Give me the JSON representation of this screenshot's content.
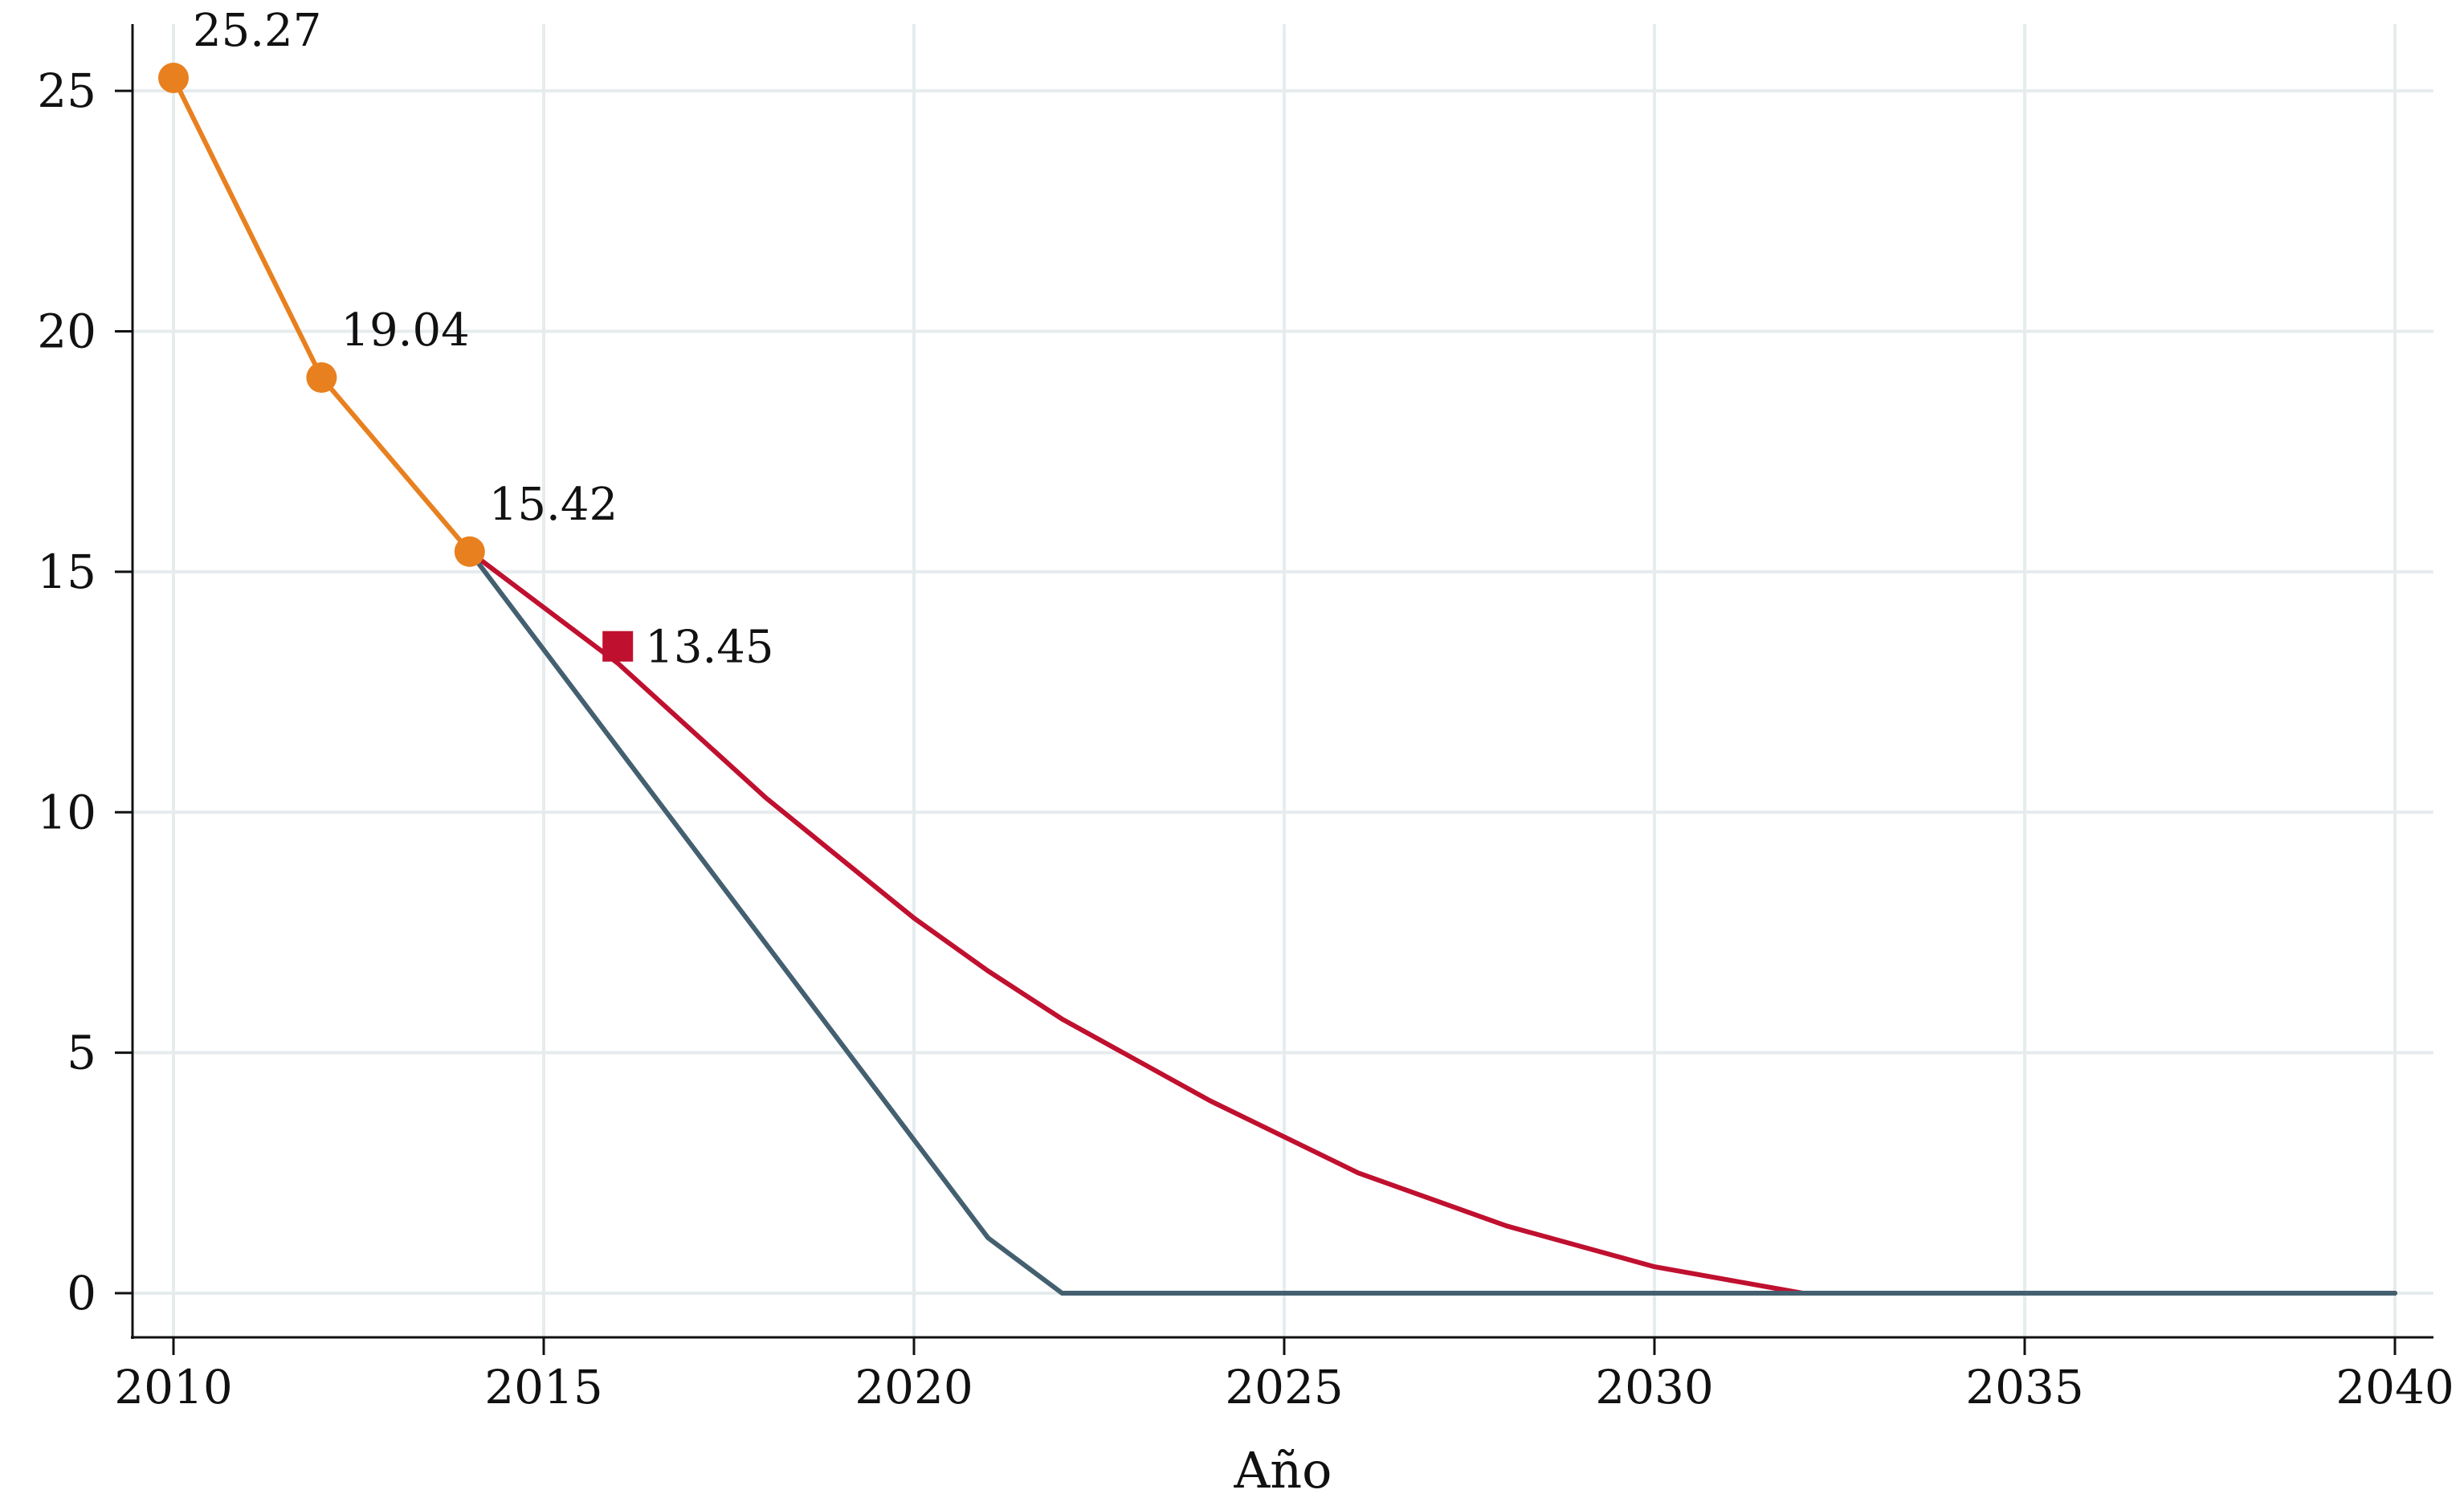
{
  "chart_data": {
    "type": "line",
    "xlabel": "Año",
    "ylabel": "",
    "xlim": [
      2010,
      2040
    ],
    "ylim": [
      0,
      25.27
    ],
    "xticks": [
      2010,
      2015,
      2020,
      2025,
      2030,
      2035,
      2040
    ],
    "yticks": [
      0,
      5,
      10,
      15,
      20,
      25
    ],
    "grid": true,
    "legend": "none",
    "series": [
      {
        "color": "#e8801f",
        "marker": "circle",
        "x": [
          2010,
          2012,
          2014
        ],
        "y": [
          25.27,
          19.04,
          15.42
        ]
      },
      {
        "color": "#c0102f",
        "marker": "none",
        "x": [
          2014,
          2016,
          2018,
          2020,
          2021,
          2022,
          2024,
          2026,
          2028,
          2030,
          2032,
          2034,
          2036,
          2038,
          2040
        ],
        "y": [
          15.42,
          13.1,
          10.3,
          7.8,
          6.7,
          5.7,
          4.0,
          2.5,
          1.4,
          0.55,
          0.0,
          0.0,
          0.0,
          0.0,
          0.0
        ]
      },
      {
        "color": "#446070",
        "marker": "none",
        "x": [
          2014,
          2021,
          2022,
          2040
        ],
        "y": [
          15.42,
          1.15,
          0.0,
          0.0
        ]
      },
      {
        "color": "#c0102f",
        "marker": "square",
        "x": [
          2016
        ],
        "y": [
          13.45
        ]
      }
    ],
    "annotations": [
      {
        "text": "25.27",
        "x": 2010,
        "y": 25.27
      },
      {
        "text": "19.04",
        "x": 2012,
        "y": 19.04
      },
      {
        "text": "15.42",
        "x": 2014,
        "y": 15.42
      },
      {
        "text": "13.45",
        "x": 2016,
        "y": 13.45
      }
    ]
  }
}
